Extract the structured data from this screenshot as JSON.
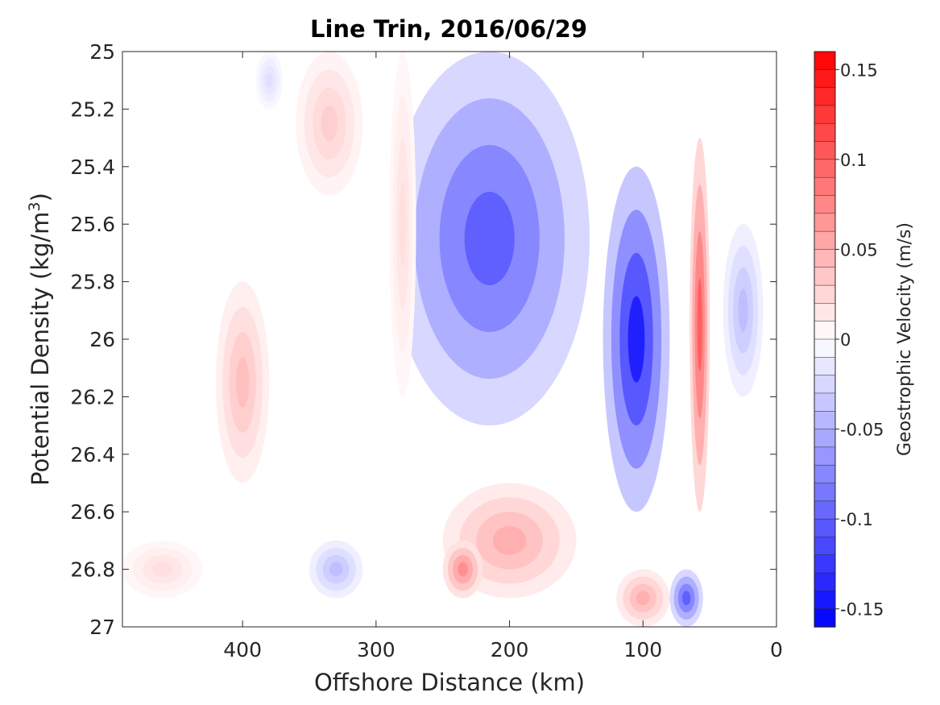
{
  "chart_data": {
    "type": "heatmap",
    "subtype": "filled-contour",
    "title": "Line Trin, 2016/06/29",
    "xlabel": "Offshore Distance (km)",
    "ylabel_base": "Potential Density (kg/m",
    "ylabel_sup": "3",
    "ylabel_end": ")",
    "xlim": [
      490,
      0
    ],
    "x_reversed": true,
    "ylim": [
      25,
      27
    ],
    "y_reversed": true,
    "xticks": [
      400,
      300,
      200,
      100,
      0
    ],
    "xtick_labels": [
      "400",
      "300",
      "200",
      "100",
      "0"
    ],
    "yticks": [
      25,
      25.2,
      25.4,
      25.6,
      25.8,
      26,
      26.2,
      26.4,
      26.6,
      26.8,
      27
    ],
    "ytick_labels": [
      "25",
      "25.2",
      "25.4",
      "25.6",
      "25.8",
      "26",
      "26.2",
      "26.4",
      "26.6",
      "26.8",
      "27"
    ],
    "colorbar": {
      "label": "Geostrophic Velocity (m/s)",
      "range": [
        -0.16,
        0.16
      ],
      "levels_step": 0.01,
      "ticks": [
        0.15,
        0.1,
        0.05,
        0,
        -0.05,
        -0.1,
        -0.15
      ],
      "tick_labels": [
        "0.15",
        "0.1",
        "0.05",
        "0",
        "-0.05",
        "-0.1",
        "-0.15"
      ],
      "colormap": "blue-white-red",
      "neg_color": "#0000ff",
      "zero_color": "#ffffff",
      "pos_color": "#ff0000"
    },
    "field_features": [
      {
        "x": [
          290,
          140
        ],
        "y": [
          25.0,
          26.3
        ],
        "value": -0.1
      },
      {
        "x": [
          130,
          80
        ],
        "y": [
          25.4,
          26.6
        ],
        "value": -0.14
      },
      {
        "x": [
          65,
          50
        ],
        "y": [
          25.3,
          26.6
        ],
        "value": 0.1
      },
      {
        "x": [
          250,
          150
        ],
        "y": [
          26.5,
          26.9
        ],
        "value": 0.05
      },
      {
        "x": [
          250,
          220
        ],
        "y": [
          26.7,
          26.9
        ],
        "value": 0.07
      },
      {
        "x": [
          120,
          80
        ],
        "y": [
          26.8,
          27.0
        ],
        "value": 0.05
      },
      {
        "x": [
          420,
          380
        ],
        "y": [
          25.8,
          26.5
        ],
        "value": 0.04
      },
      {
        "x": [
          360,
          310
        ],
        "y": [
          25.0,
          25.5
        ],
        "value": 0.03
      },
      {
        "x": [
          290,
          270
        ],
        "y": [
          25.0,
          26.2
        ],
        "value": 0.02
      },
      {
        "x": [
          390,
          370
        ],
        "y": [
          25.0,
          25.2
        ],
        "value": -0.02
      },
      {
        "x": [
          350,
          310
        ],
        "y": [
          26.7,
          26.9
        ],
        "value": -0.04
      },
      {
        "x": [
          80,
          55
        ],
        "y": [
          26.8,
          27.0
        ],
        "value": -0.1
      },
      {
        "x": [
          490,
          430
        ],
        "y": [
          26.7,
          26.9
        ],
        "value": 0.02
      },
      {
        "x": [
          40,
          10
        ],
        "y": [
          25.6,
          26.2
        ],
        "value": -0.04
      }
    ]
  }
}
